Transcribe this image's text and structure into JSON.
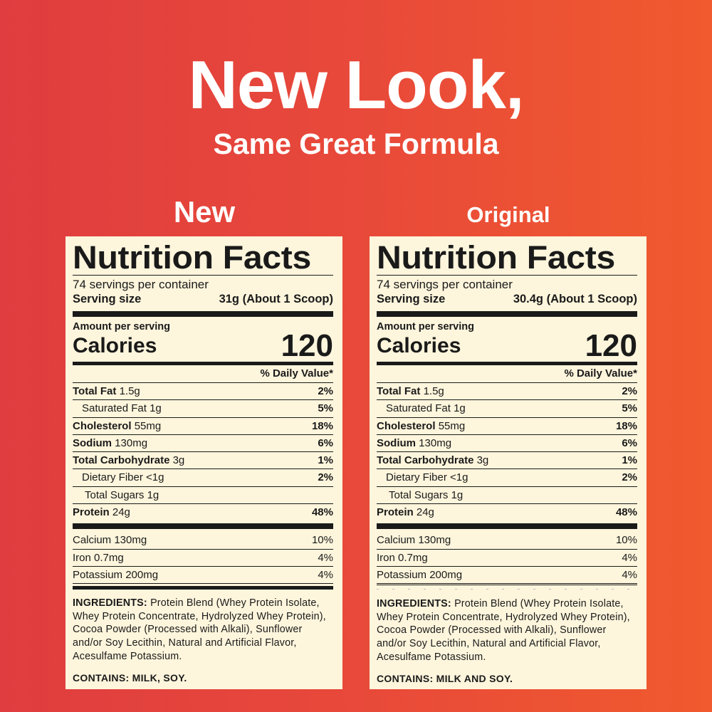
{
  "headline": {
    "line1": "New Look,",
    "line2": "Same Great Formula"
  },
  "colors": {
    "background_left": "#df3d3f",
    "background_right": "#f05a2e",
    "panel": "#fdf5dc",
    "text": "#1a1a1a"
  },
  "panels": [
    {
      "label": "New",
      "title": "Nutrition Facts",
      "servings": "74 servings per container",
      "serving_size_label": "Serving size",
      "serving_size": "31g (About 1 Scoop)",
      "amount_per_serving": "Amount per serving",
      "calories_label": "Calories",
      "calories": "120",
      "dv_header": "% Daily Value*",
      "nutrients": [
        {
          "name": "Total Fat",
          "amount": "1.5g",
          "dv": "2%",
          "bold": true
        },
        {
          "name": "Saturated Fat",
          "amount": "1g",
          "dv": "5%",
          "indent": 1
        },
        {
          "name": "Cholesterol",
          "amount": "55mg",
          "dv": "18%",
          "bold": true
        },
        {
          "name": "Sodium",
          "amount": "130mg",
          "dv": "6%",
          "bold": true
        },
        {
          "name": "Total Carbohydrate",
          "amount": "3g",
          "dv": "1%",
          "bold": true
        },
        {
          "name": "Dietary Fiber",
          "amount": "<1g",
          "dv": "2%",
          "indent": 1
        },
        {
          "name": "Total Sugars",
          "amount": "1g",
          "dv": "",
          "indent": 2
        },
        {
          "name": "Protein",
          "amount": "24g",
          "dv": "48%",
          "bold": true
        }
      ],
      "vitamins": [
        {
          "name": "Calcium 130mg",
          "dv": "10%"
        },
        {
          "name": "Iron 0.7mg",
          "dv": "4%"
        },
        {
          "name": "Potassium 200mg",
          "dv": "4%"
        }
      ],
      "ingredients_label": "INGREDIENTS:",
      "ingredients": "Protein Blend (Whey Protein Isolate, Whey Protein Concentrate, Hydrolyzed Whey Protein), Cocoa Powder (Processed with Alkali), Sunflower and/or Soy Lecithin, Natural and Artificial Flavor, Acesulfame Potassium.",
      "contains": "CONTAINS: MILK, SOY."
    },
    {
      "label": "Original",
      "title": "Nutrition Facts",
      "servings": "74 servings per container",
      "serving_size_label": "Serving size",
      "serving_size": "30.4g (About 1 Scoop)",
      "amount_per_serving": "Amount per serving",
      "calories_label": "Calories",
      "calories": "120",
      "dv_header": "% Daily Value*",
      "nutrients": [
        {
          "name": "Total Fat",
          "amount": "1.5g",
          "dv": "2%",
          "bold": true
        },
        {
          "name": "Saturated Fat",
          "amount": "1g",
          "dv": "5%",
          "indent": 1
        },
        {
          "name": "Cholesterol",
          "amount": "55mg",
          "dv": "18%",
          "bold": true
        },
        {
          "name": "Sodium",
          "amount": "130mg",
          "dv": "6%",
          "bold": true
        },
        {
          "name": "Total Carbohydrate",
          "amount": "3g",
          "dv": "1%",
          "bold": true
        },
        {
          "name": "Dietary Fiber",
          "amount": "<1g",
          "dv": "2%",
          "indent": 1
        },
        {
          "name": "Total Sugars",
          "amount": "1g",
          "dv": "",
          "indent": 2
        },
        {
          "name": "Protein",
          "amount": "24g",
          "dv": "48%",
          "bold": true
        }
      ],
      "vitamins": [
        {
          "name": "Calcium 130mg",
          "dv": "10%"
        },
        {
          "name": "Iron 0.7mg",
          "dv": "4%"
        },
        {
          "name": "Potassium 200mg",
          "dv": "4%"
        }
      ],
      "ingredients_label": "INGREDIENTS:",
      "ingredients": "Protein Blend (Whey Protein Isolate, Whey Protein Concentrate, Hydrolyzed Whey Protein), Cocoa Powder (Processed with Alkali), Sunflower and/or Soy Lecithin, Natural and Artificial Flavor, Acesulfame Potassium.",
      "contains": "CONTAINS: MILK AND SOY."
    }
  ]
}
